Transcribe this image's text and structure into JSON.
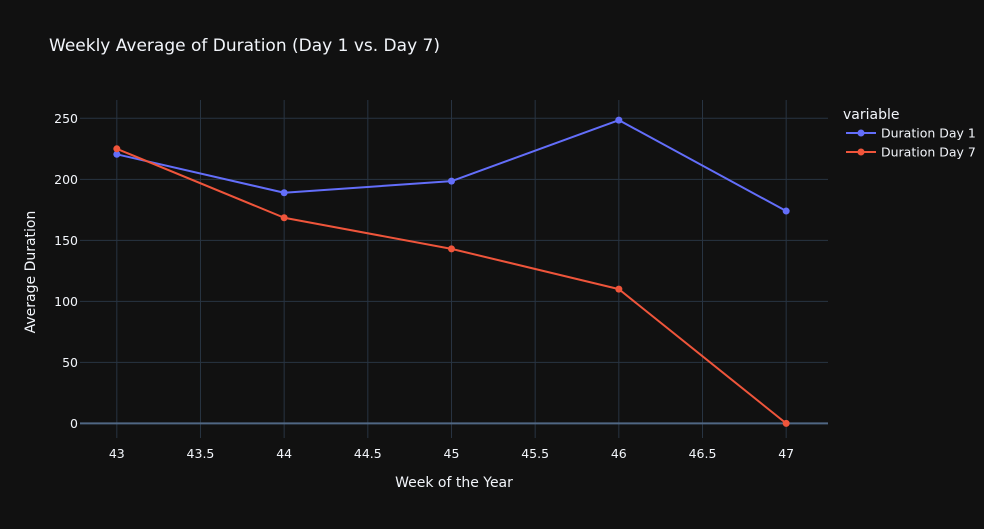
{
  "chart_data": {
    "type": "line",
    "title": "Weekly Average of Duration (Day 1 vs. Day 7)",
    "xlabel": "Week of the Year",
    "ylabel": "Average Duration",
    "x": [
      43,
      44,
      45,
      46,
      47
    ],
    "xlim": [
      42.78,
      47.25
    ],
    "ylim": [
      -12,
      265
    ],
    "xticks": [
      43,
      43.5,
      44,
      44.5,
      45,
      45.5,
      46,
      46.5,
      47
    ],
    "xtick_labels": [
      "43",
      "43.5",
      "44",
      "44.5",
      "45",
      "45.5",
      "46",
      "46.5",
      "47"
    ],
    "yticks": [
      0,
      50,
      100,
      150,
      200,
      250
    ],
    "ytick_labels": [
      "0",
      "50",
      "100",
      "150",
      "200",
      "250"
    ],
    "grid": true,
    "legend": {
      "title": "variable",
      "position": "top-right outside"
    },
    "series": [
      {
        "name": "Duration Day 1",
        "color": "#636efa",
        "values": [
          220.5,
          189,
          198.5,
          248.5,
          174
        ]
      },
      {
        "name": "Duration Day 7",
        "color": "#ef553b",
        "values": [
          225,
          168.5,
          143,
          110,
          0
        ]
      }
    ]
  }
}
